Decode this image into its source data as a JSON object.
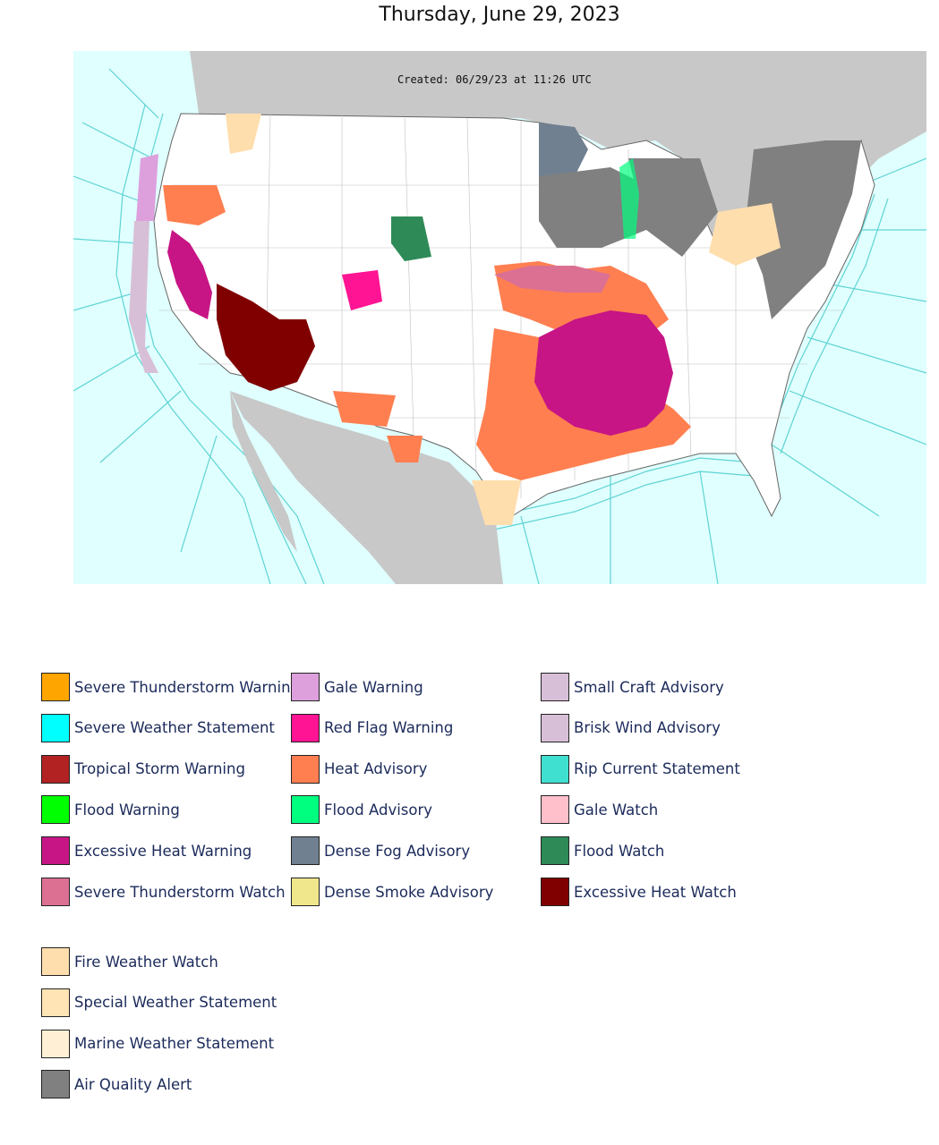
{
  "title": "Thursday, June 29, 2023",
  "map": {
    "created_label": "Created: 06/29/23 at 11:26 UTC",
    "colors": {
      "ocean": "#e0ffff",
      "land_other": "#c8c8c8",
      "us_land": "#ffffff",
      "marine_zone_line": "#5fd3d3",
      "county_line": "#b0b0b0"
    }
  },
  "legend": {
    "items": [
      {
        "label": "Severe Thunderstorm Warning",
        "color": "#ffa500"
      },
      {
        "label": "Severe Weather Statement",
        "color": "#00ffff"
      },
      {
        "label": "Tropical Storm Warning",
        "color": "#b22222"
      },
      {
        "label": "Flood Warning",
        "color": "#00ff00"
      },
      {
        "label": "Excessive Heat Warning",
        "color": "#c71585"
      },
      {
        "label": "Severe Thunderstorm Watch",
        "color": "#db7093"
      },
      {
        "label": "Gale Warning",
        "color": "#dda0dd"
      },
      {
        "label": "Red Flag Warning",
        "color": "#ff1493"
      },
      {
        "label": "Heat Advisory",
        "color": "#ff7f50"
      },
      {
        "label": "Flood Advisory",
        "color": "#00ff7f"
      },
      {
        "label": "Dense Fog Advisory",
        "color": "#708090"
      },
      {
        "label": "Dense Smoke Advisory",
        "color": "#f0e68c"
      },
      {
        "label": "Small Craft Advisory",
        "color": "#d8bfd8"
      },
      {
        "label": "Brisk Wind Advisory",
        "color": "#d8bfd8"
      },
      {
        "label": "Rip Current Statement",
        "color": "#40e0d0"
      },
      {
        "label": "Gale Watch",
        "color": "#ffc0cb"
      },
      {
        "label": "Flood Watch",
        "color": "#2e8b57"
      },
      {
        "label": "Excessive Heat Watch",
        "color": "#800000"
      },
      {
        "label": "Fire Weather Watch",
        "color": "#ffdead"
      },
      {
        "label": "Special Weather Statement",
        "color": "#ffe4b5"
      },
      {
        "label": "Marine Weather Statement",
        "color": "#ffefd5"
      },
      {
        "label": "Air Quality Alert",
        "color": "#808080"
      }
    ]
  }
}
